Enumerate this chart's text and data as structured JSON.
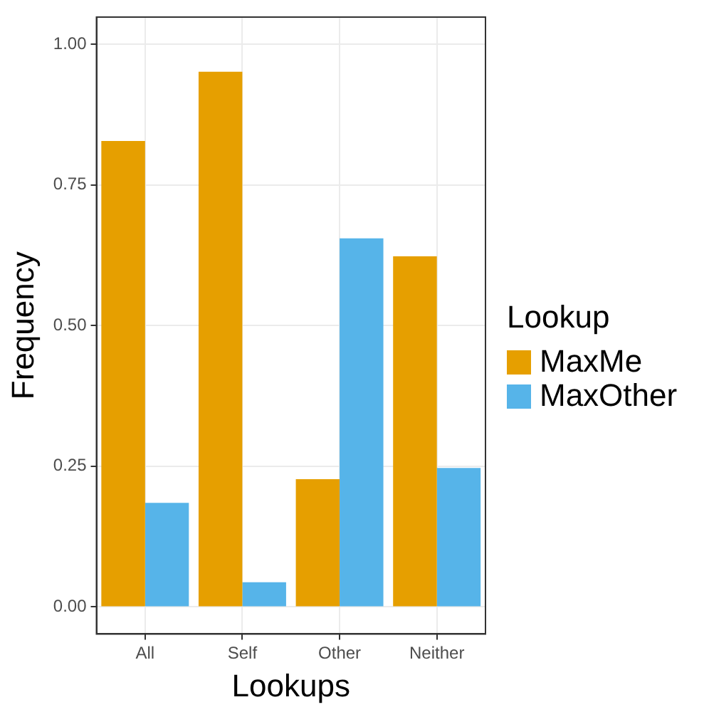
{
  "chart_data": {
    "type": "bar",
    "xlabel": "Lookups",
    "ylabel": "Frequency",
    "legend_title": "Lookup",
    "categories": [
      "All",
      "Self",
      "Other",
      "Neither"
    ],
    "series": [
      {
        "name": "MaxMe",
        "color": "#e69f00",
        "values": [
          0.828,
          0.951,
          0.227,
          0.623
        ]
      },
      {
        "name": "MaxOther",
        "color": "#56b4e9",
        "values": [
          0.185,
          0.044,
          0.655,
          0.247
        ]
      }
    ],
    "ylim": [
      -0.048,
      1.048
    ],
    "yticks": [
      {
        "value": 0,
        "label": "0.00"
      },
      {
        "value": 0.25,
        "label": "0.25"
      },
      {
        "value": 0.5,
        "label": "0.50"
      },
      {
        "value": 0.75,
        "label": "0.75"
      },
      {
        "value": 1,
        "label": "1.00"
      }
    ],
    "grid": true,
    "legend": "right"
  }
}
